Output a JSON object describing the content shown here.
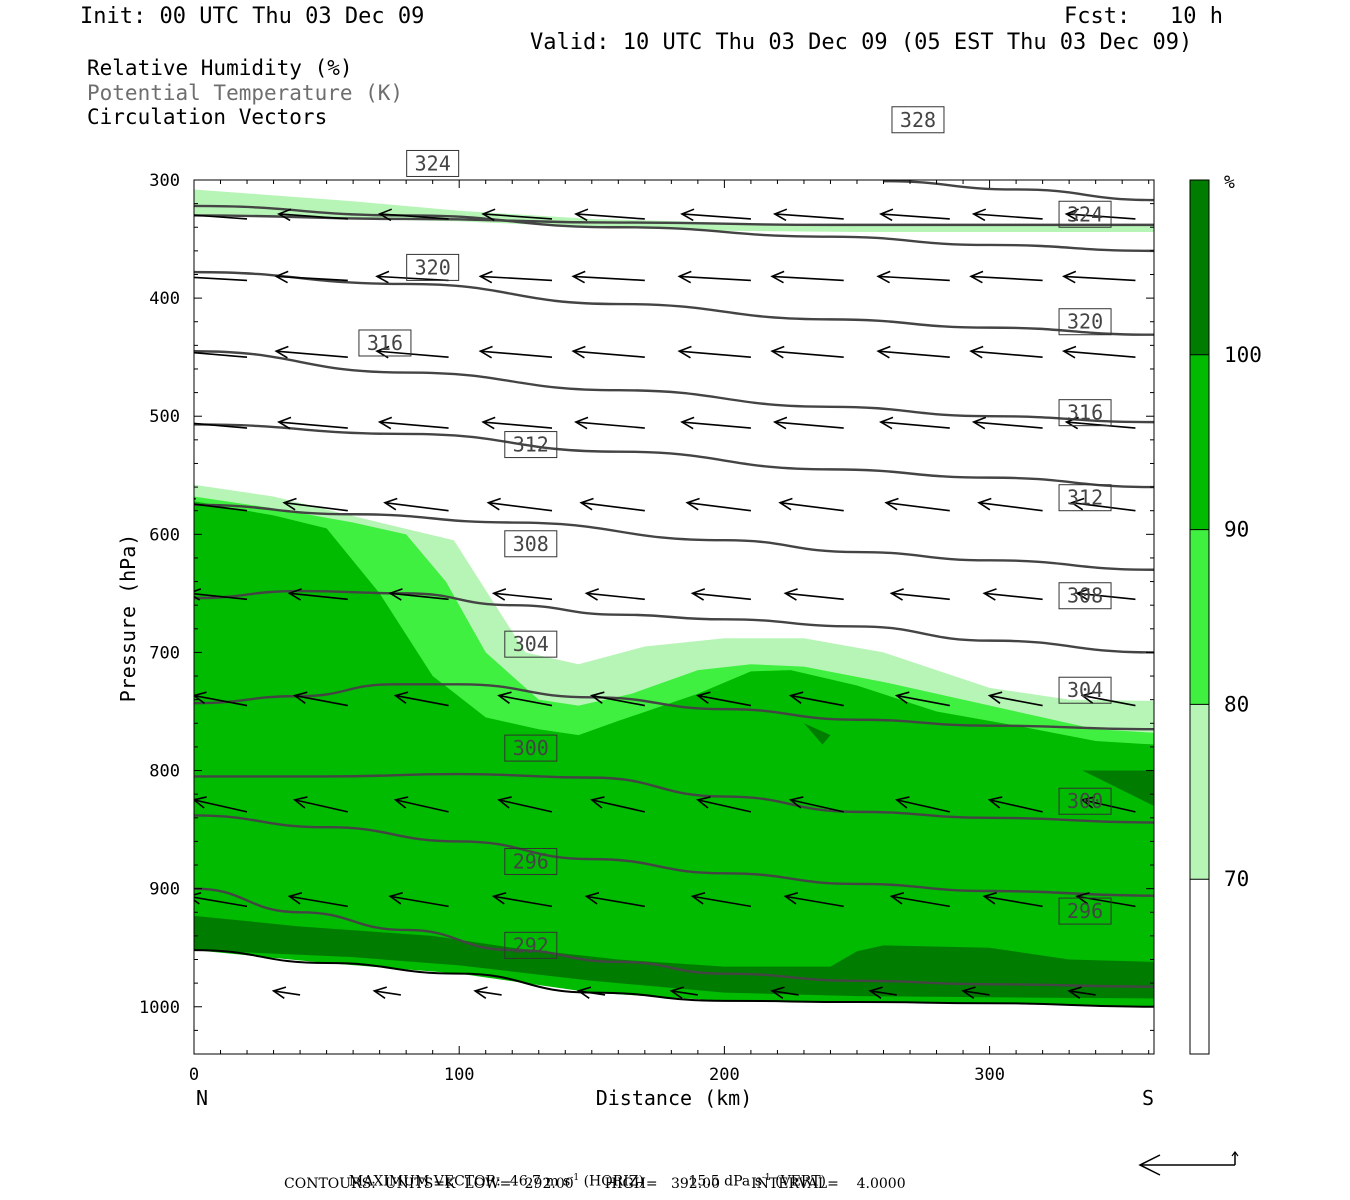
{
  "header": {
    "init": "Init: 00 UTC Thu 03 Dec 09",
    "fcst": "Fcst:   10 h",
    "valid": "Valid: 10 UTC Thu 03 Dec 09 (05 EST Thu 03 Dec 09)"
  },
  "legend_lines": [
    {
      "text": "Relative Humidity (%)",
      "color": "#000000"
    },
    {
      "text": "Potential Temperature (K)",
      "color": "#6e6e6e"
    },
    {
      "text": "Circulation Vectors",
      "color": "#000000"
    }
  ],
  "footer": {
    "max_vector_label": "MAXIMUM VECTOR:",
    "max_vector_horiz": "46.7 m s",
    "max_vector_horiz_unit": "(HORIZ)",
    "max_vector_vert": "15.5 dPa s",
    "max_vector_vert_unit": "(VERT)",
    "exponent": "-1",
    "contours": "CONTOURS:  UNITS=K  LOW=   292.00       HIGH=   392.00       INTERVAL=    4.0000"
  },
  "colors": {
    "rh_70_80": "#b7f5b7",
    "rh_80_90": "#40f040",
    "rh_90_100": "#00bb00",
    "rh_100": "#007d00",
    "theta": "#444444",
    "vector": "#000000"
  },
  "chart_data": {
    "type": "cross-section",
    "xlabel": "Distance (km)",
    "ylabel": "Pressure (hPa)",
    "x_start_label": "N",
    "x_end_label": "S",
    "xlim": [
      0,
      362
    ],
    "ylim": [
      300,
      1040
    ],
    "xticks": [
      0,
      100,
      200,
      300
    ],
    "yticks": [
      300,
      400,
      500,
      600,
      700,
      800,
      900,
      1000
    ],
    "colorbar": {
      "unit": "%",
      "levels": [
        70,
        80,
        90,
        100
      ],
      "colors": [
        "#ffffff",
        "#b7f5b7",
        "#40f040",
        "#00bb00",
        "#007d00"
      ]
    },
    "rh_fields": [
      {
        "level": "70-80",
        "color": "#b7f5b7",
        "top": [
          [
            0,
            308
          ],
          [
            30,
            313
          ],
          [
            60,
            318
          ],
          [
            100,
            326
          ],
          [
            150,
            333
          ],
          [
            200,
            336
          ],
          [
            250,
            338
          ],
          [
            300,
            339
          ],
          [
            362,
            338
          ]
        ],
        "bottom": [
          [
            0,
            330
          ],
          [
            100,
            335
          ],
          [
            150,
            340
          ],
          [
            200,
            343
          ],
          [
            250,
            344
          ],
          [
            300,
            344
          ],
          [
            362,
            344
          ]
        ]
      },
      {
        "level": "70-80",
        "color": "#b7f5b7",
        "top": [
          [
            0,
            558
          ],
          [
            30,
            568
          ],
          [
            70,
            590
          ],
          [
            98,
            605
          ],
          [
            125,
            700
          ],
          [
            145,
            710
          ],
          [
            170,
            695
          ],
          [
            200,
            688
          ],
          [
            230,
            688
          ],
          [
            260,
            700
          ],
          [
            300,
            730
          ],
          [
            330,
            740
          ],
          [
            362,
            741
          ]
        ],
        "bottom": [
          [
            0,
            1000
          ],
          [
            362,
            1000
          ]
        ]
      },
      {
        "level": "80-90",
        "color": "#40f040",
        "top": [
          [
            0,
            568
          ],
          [
            30,
            578
          ],
          [
            60,
            590
          ],
          [
            80,
            600
          ],
          [
            95,
            640
          ],
          [
            110,
            700
          ],
          [
            130,
            740
          ],
          [
            145,
            745
          ],
          [
            165,
            735
          ],
          [
            190,
            715
          ],
          [
            210,
            710
          ],
          [
            230,
            712
          ],
          [
            260,
            725
          ],
          [
            290,
            740
          ],
          [
            320,
            755
          ],
          [
            340,
            765
          ],
          [
            362,
            768
          ]
        ],
        "bottom": [
          [
            0,
            1000
          ],
          [
            362,
            1000
          ]
        ]
      },
      {
        "level": "90-100",
        "color": "#00bb00",
        "top": [
          [
            0,
            572
          ],
          [
            30,
            584
          ],
          [
            50,
            595
          ],
          [
            70,
            650
          ],
          [
            90,
            720
          ],
          [
            110,
            755
          ],
          [
            130,
            765
          ],
          [
            145,
            770
          ],
          [
            160,
            758
          ],
          [
            190,
            735
          ],
          [
            210,
            716
          ],
          [
            225,
            715
          ],
          [
            250,
            728
          ],
          [
            280,
            750
          ],
          [
            310,
            762
          ],
          [
            340,
            775
          ],
          [
            362,
            778
          ]
        ],
        "bottom": [
          [
            0,
            1000
          ],
          [
            362,
            1000
          ]
        ]
      },
      {
        "level": "100+",
        "color": "#007d00",
        "top": [
          [
            0,
            923
          ],
          [
            40,
            932
          ],
          [
            90,
            940
          ],
          [
            120,
            950
          ],
          [
            160,
            960
          ],
          [
            200,
            966
          ],
          [
            240,
            966
          ],
          [
            250,
            953
          ],
          [
            260,
            948
          ],
          [
            300,
            950
          ],
          [
            330,
            960
          ],
          [
            362,
            962
          ]
        ],
        "bottom": [
          [
            0,
            952
          ],
          [
            60,
            958
          ],
          [
            100,
            965
          ],
          [
            150,
            978
          ],
          [
            200,
            988
          ],
          [
            250,
            991
          ],
          [
            300,
            992
          ],
          [
            362,
            993
          ]
        ]
      },
      {
        "level": "100+",
        "color": "#007d00",
        "top": [
          [
            230,
            760
          ],
          [
            237,
            778
          ],
          [
            240,
            770
          ]
        ],
        "bottom": []
      },
      {
        "level": "100+",
        "color": "#007d00",
        "top": [
          [
            335,
            800
          ],
          [
            362,
            800
          ],
          [
            362,
            830
          ]
        ],
        "bottom": []
      }
    ],
    "theta_contours": [
      {
        "value": 292,
        "points": [
          [
            0,
            900
          ],
          [
            40,
            920
          ],
          [
            80,
            935
          ],
          [
            120,
            952
          ],
          [
            160,
            962
          ],
          [
            200,
            972
          ],
          [
            250,
            978
          ],
          [
            300,
            981
          ],
          [
            362,
            983
          ]
        ],
        "labels": [
          [
            127,
            948
          ]
        ]
      },
      {
        "value": 296,
        "points": [
          [
            0,
            838
          ],
          [
            50,
            848
          ],
          [
            100,
            860
          ],
          [
            150,
            875
          ],
          [
            200,
            887
          ],
          [
            250,
            896
          ],
          [
            300,
            902
          ],
          [
            362,
            906
          ]
        ],
        "labels": [
          [
            127,
            877
          ],
          [
            336,
            919
          ]
        ]
      },
      {
        "value": 300,
        "points": [
          [
            0,
            805
          ],
          [
            50,
            805
          ],
          [
            100,
            803
          ],
          [
            150,
            806
          ],
          [
            200,
            822
          ],
          [
            250,
            835
          ],
          [
            300,
            840
          ],
          [
            362,
            844
          ]
        ],
        "labels": [
          [
            127,
            781
          ],
          [
            336,
            826
          ]
        ]
      },
      {
        "value": 304,
        "points": [
          [
            0,
            743
          ],
          [
            40,
            737
          ],
          [
            75,
            727
          ],
          [
            100,
            727
          ],
          [
            150,
            738
          ],
          [
            200,
            748
          ],
          [
            250,
            757
          ],
          [
            300,
            762
          ],
          [
            362,
            765
          ]
        ],
        "labels": [
          [
            127,
            693
          ],
          [
            336,
            732
          ]
        ]
      },
      {
        "value": 308,
        "points": [
          [
            0,
            654
          ],
          [
            40,
            648
          ],
          [
            80,
            650
          ],
          [
            120,
            660
          ],
          [
            160,
            668
          ],
          [
            200,
            672
          ],
          [
            250,
            678
          ],
          [
            300,
            690
          ],
          [
            362,
            700
          ]
        ],
        "labels": [
          [
            127,
            608
          ],
          [
            336,
            652
          ]
        ]
      },
      {
        "value": 312,
        "points": [
          [
            0,
            575
          ],
          [
            60,
            583
          ],
          [
            120,
            590
          ],
          [
            200,
            605
          ],
          [
            250,
            615
          ],
          [
            300,
            622
          ],
          [
            362,
            630
          ]
        ],
        "labels": [
          [
            127,
            524
          ],
          [
            336,
            569
          ]
        ]
      },
      {
        "value": 316,
        "points": [
          [
            0,
            507
          ],
          [
            80,
            515
          ],
          [
            160,
            530
          ],
          [
            240,
            545
          ],
          [
            300,
            552
          ],
          [
            362,
            560
          ]
        ],
        "labels": [
          [
            72,
            438
          ],
          [
            336,
            497
          ]
        ]
      },
      {
        "value": 320,
        "points": [
          [
            0,
            445
          ],
          [
            80,
            463
          ],
          [
            160,
            478
          ],
          [
            240,
            492
          ],
          [
            300,
            500
          ],
          [
            362,
            505
          ]
        ],
        "labels": [
          [
            90,
            374
          ],
          [
            336,
            420
          ]
        ]
      },
      {
        "value": 324,
        "points": [
          [
            0,
            378
          ],
          [
            80,
            388
          ],
          [
            160,
            405
          ],
          [
            240,
            418
          ],
          [
            300,
            425
          ],
          [
            362,
            431
          ]
        ],
        "labels": [
          [
            90,
            286
          ],
          [
            336,
            329
          ]
        ]
      },
      {
        "value": 328,
        "points": [
          [
            0,
            322
          ],
          [
            80,
            330
          ],
          [
            160,
            340
          ],
          [
            240,
            348
          ],
          [
            300,
            355
          ],
          [
            362,
            360
          ]
        ],
        "labels": [
          [
            273,
            249
          ]
        ]
      },
      {
        "value": 332,
        "points": [
          [
            0,
            330
          ],
          [
            80,
            333
          ],
          [
            160,
            336
          ],
          [
            240,
            338
          ],
          [
            362,
            338
          ]
        ],
        "labels": []
      },
      {
        "value": 336,
        "points": [
          [
            260,
            301
          ],
          [
            310,
            308
          ],
          [
            362,
            317
          ]
        ],
        "labels": []
      }
    ],
    "surface_line": [
      [
        0,
        952
      ],
      [
        50,
        963
      ],
      [
        100,
        972
      ],
      [
        150,
        988
      ],
      [
        200,
        995
      ],
      [
        250,
        996
      ],
      [
        300,
        997
      ],
      [
        362,
        1000
      ]
    ],
    "vector_rows": [
      {
        "p": 333,
        "xs": [
          20,
          58,
          96,
          135,
          170,
          210,
          245,
          285,
          320,
          355
        ],
        "dx": -26,
        "dy": -5
      },
      {
        "p": 385,
        "xs": [
          20,
          58,
          96,
          135,
          170,
          210,
          245,
          285,
          320,
          355
        ],
        "dx": -27,
        "dy": -4
      },
      {
        "p": 450,
        "xs": [
          20,
          58,
          96,
          135,
          170,
          210,
          245,
          285,
          320,
          355
        ],
        "dx": -27,
        "dy": -6
      },
      {
        "p": 510,
        "xs": [
          20,
          58,
          96,
          135,
          170,
          210,
          245,
          285,
          320,
          355
        ],
        "dx": -26,
        "dy": -6
      },
      {
        "p": 580,
        "xs": [
          20,
          58,
          96,
          135,
          170,
          210,
          245,
          285,
          320,
          355
        ],
        "dx": -24,
        "dy": -8
      },
      {
        "p": 655,
        "xs": [
          20,
          58,
          96,
          135,
          170,
          210,
          245,
          285,
          320,
          355
        ],
        "dx": -22,
        "dy": -6
      },
      {
        "p": 745,
        "xs": [
          20,
          58,
          96,
          135,
          170,
          210,
          245,
          285,
          320,
          355
        ],
        "dx": -20,
        "dy": -10
      },
      {
        "p": 835,
        "xs": [
          20,
          58,
          96,
          135,
          170,
          210,
          245,
          285,
          320,
          355
        ],
        "dx": -20,
        "dy": -12
      },
      {
        "p": 915,
        "xs": [
          20,
          58,
          96,
          135,
          170,
          210,
          245,
          285,
          320,
          355
        ],
        "dx": -22,
        "dy": -10
      },
      {
        "p": 990,
        "xs": [
          40,
          78,
          116,
          155,
          190,
          228,
          265,
          300,
          340
        ],
        "dx": -10,
        "dy": -4
      }
    ]
  }
}
